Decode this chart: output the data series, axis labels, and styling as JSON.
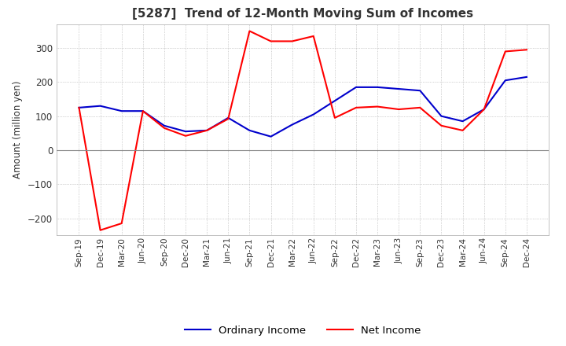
{
  "title": "[5287]  Trend of 12-Month Moving Sum of Incomes",
  "ylabel": "Amount (million yen)",
  "ylim": [
    -250,
    370
  ],
  "yticks": [
    -200,
    -100,
    0,
    100,
    200,
    300
  ],
  "background_color": "#ffffff",
  "grid_color": "#aaaaaa",
  "ordinary_income_color": "#0000cc",
  "net_income_color": "#ff0000",
  "x_labels": [
    "Sep-19",
    "Dec-19",
    "Mar-20",
    "Jun-20",
    "Sep-20",
    "Dec-20",
    "Mar-21",
    "Jun-21",
    "Sep-21",
    "Dec-21",
    "Mar-22",
    "Jun-22",
    "Sep-22",
    "Dec-22",
    "Mar-23",
    "Jun-23",
    "Sep-23",
    "Dec-23",
    "Mar-24",
    "Jun-24",
    "Sep-24",
    "Dec-24"
  ],
  "ordinary_income": [
    125,
    130,
    115,
    115,
    72,
    55,
    58,
    95,
    58,
    40,
    75,
    105,
    145,
    185,
    185,
    180,
    175,
    100,
    85,
    120,
    205,
    215
  ],
  "net_income": [
    125,
    -235,
    -215,
    115,
    65,
    42,
    58,
    92,
    350,
    320,
    320,
    335,
    95,
    125,
    128,
    120,
    125,
    72,
    58,
    120,
    290,
    295
  ]
}
